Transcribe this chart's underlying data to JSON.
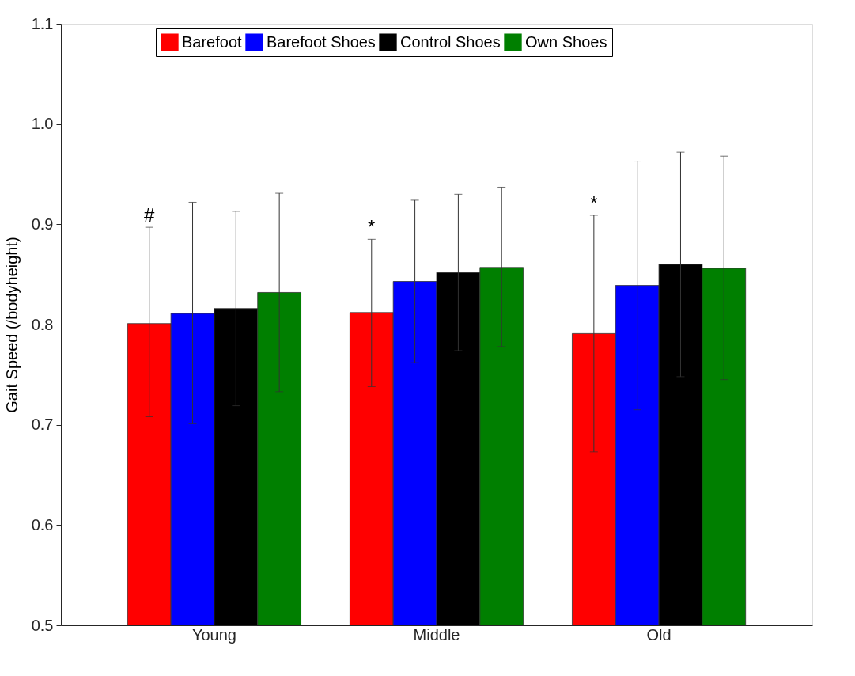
{
  "chart_data": {
    "type": "bar",
    "ylabel": "Gait Speed (/bodyheight)",
    "categories": [
      "Young",
      "Middle",
      "Old"
    ],
    "series": [
      {
        "name": "Barefoot",
        "color": "#ff0000",
        "values": [
          0.801,
          0.812,
          0.791
        ],
        "errors": [
          [
            0.708,
            0.897
          ],
          [
            0.738,
            0.885
          ],
          [
            0.673,
            0.909
          ]
        ]
      },
      {
        "name": "Barefoot Shoes",
        "color": "#0000ff",
        "values": [
          0.811,
          0.843,
          0.839
        ],
        "errors": [
          [
            0.701,
            0.922
          ],
          [
            0.762,
            0.924
          ],
          [
            0.715,
            0.963
          ]
        ]
      },
      {
        "name": "Control Shoes",
        "color": "#000000",
        "values": [
          0.816,
          0.852,
          0.86
        ],
        "errors": [
          [
            0.719,
            0.913
          ],
          [
            0.774,
            0.93
          ],
          [
            0.748,
            0.972
          ]
        ]
      },
      {
        "name": "Own Shoes",
        "color": "#007f00",
        "values": [
          0.832,
          0.857,
          0.856
        ],
        "errors": [
          [
            0.733,
            0.931
          ],
          [
            0.778,
            0.937
          ],
          [
            0.745,
            0.968
          ]
        ]
      }
    ],
    "annotations": [
      "#",
      "*",
      "*"
    ],
    "ylim": [
      0.5,
      1.1
    ],
    "yticks": [
      0.5,
      0.6,
      0.7,
      0.8,
      0.9,
      {
        "value": 1,
        "label": "1.0"
      },
      1.1
    ],
    "grid": false,
    "legend": "top"
  }
}
